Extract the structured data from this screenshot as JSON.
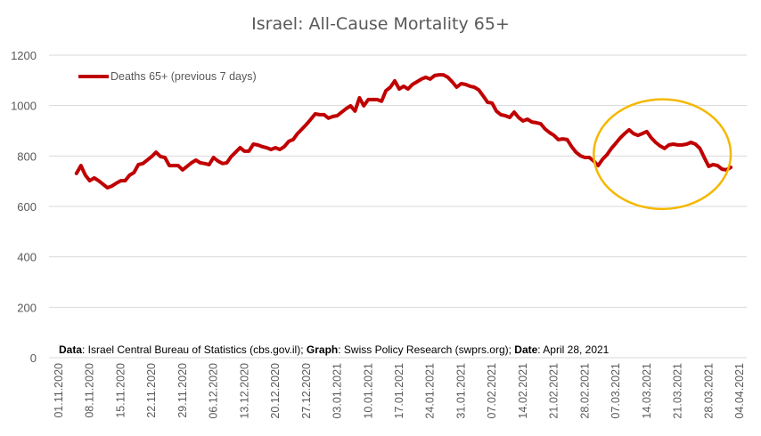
{
  "chart_data": {
    "type": "line",
    "title": "Israel: All-Cause Mortality 65+",
    "xlabel": "",
    "ylabel": "",
    "ylim": [
      0,
      1200
    ],
    "yticks": [
      0,
      200,
      400,
      600,
      800,
      1000,
      1200
    ],
    "grid": true,
    "legend_position": "top-left",
    "x_start_date": "01.11.2020",
    "x_end_date": "04.04.2021",
    "x_total_days": 154,
    "x_tick_labels": [
      "01.11.2020",
      "08.11.2020",
      "15.11.2020",
      "22.11.2020",
      "29.11.2020",
      "06.12.2020",
      "13.12.2020",
      "20.12.2020",
      "27.12.2020",
      "03.01.2021",
      "10.01.2021",
      "17.01.2021",
      "24.01.2021",
      "31.01.2021",
      "07.02.2021",
      "14.02.2021",
      "21.02.2021",
      "28.02.2021",
      "07.03.2021",
      "14.03.2021",
      "21.03.2021",
      "28.03.2021",
      "04.04.2021"
    ],
    "series": [
      {
        "name": "Deaths 65+ (previous 7 days)",
        "color": "#c00000",
        "start_day_offset": 4,
        "values": [
          731,
          762,
          724,
          702,
          713,
          702,
          688,
          674,
          681,
          692,
          702,
          702,
          724,
          734,
          766,
          770,
          784,
          798,
          815,
          798,
          794,
          762,
          762,
          762,
          745,
          759,
          773,
          784,
          773,
          770,
          766,
          794,
          780,
          770,
          773,
          798,
          815,
          833,
          819,
          819,
          847,
          844,
          837,
          833,
          826,
          833,
          826,
          837,
          858,
          865,
          889,
          907,
          925,
          946,
          967,
          964,
          964,
          950,
          957,
          960,
          974,
          988,
          999,
          978,
          1031,
          999,
          1024,
          1024,
          1024,
          1017,
          1059,
          1073,
          1098,
          1066,
          1077,
          1066,
          1084,
          1094,
          1105,
          1112,
          1105,
          1119,
          1122,
          1122,
          1112,
          1094,
          1073,
          1087,
          1084,
          1077,
          1073,
          1062,
          1038,
          1013,
          1010,
          978,
          964,
          960,
          953,
          974,
          953,
          939,
          946,
          935,
          932,
          928,
          907,
          893,
          882,
          865,
          868,
          865,
          837,
          815,
          801,
          794,
          794,
          780,
          762,
          787,
          805,
          830,
          851,
          872,
          889,
          904,
          889,
          882,
          889,
          897,
          872,
          854,
          840,
          830,
          844,
          847,
          844,
          844,
          847,
          854,
          847,
          830,
          794,
          759,
          766,
          762,
          748,
          745,
          755
        ]
      }
    ],
    "annotations": [
      {
        "type": "ellipse",
        "color": "#f5b800",
        "description": "highlight around March 2021 period",
        "x_from_date": "02.03.2021",
        "x_to_date": "02.04.2021",
        "y_from": 590,
        "y_to": 1025
      }
    ],
    "source_note": {
      "parts": [
        {
          "text": "Data",
          "bold": true
        },
        {
          "text": ": Israel Central Bureau of Statistics (cbs.gov.il); ",
          "bold": false
        },
        {
          "text": "Graph",
          "bold": true
        },
        {
          "text": ": Swiss Policy Research (swprs.org); ",
          "bold": false
        },
        {
          "text": "Date",
          "bold": true
        },
        {
          "text": ": April 28, 2021",
          "bold": false
        }
      ]
    }
  },
  "colors": {
    "line": "#c00000",
    "grid": "#d9d9d9",
    "text": "#595959",
    "highlight": "#f5b800"
  }
}
